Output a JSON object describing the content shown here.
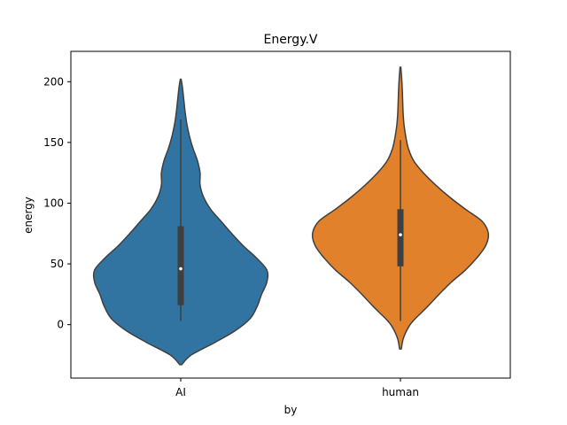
{
  "chart_data": {
    "type": "violin",
    "title": "Energy.V",
    "xlabel": "by",
    "ylabel": "energy",
    "categories": [
      "AI",
      "human"
    ],
    "ylim": [
      -44,
      225
    ],
    "yticks": [
      0,
      50,
      100,
      150,
      200
    ],
    "grid": false,
    "legend": "none",
    "series": [
      {
        "category": "AI",
        "color": "#3274a1",
        "box": {
          "whisker_low": 3,
          "q1": 16,
          "median": 46,
          "q3": 81,
          "whisker_high": 169
        },
        "density": {
          "y": [
            -33,
            -25,
            -15,
            -5,
            5,
            15,
            25,
            35,
            45,
            55,
            65,
            75,
            85,
            95,
            105,
            115,
            125,
            135,
            145,
            155,
            165,
            175,
            185,
            195,
            202
          ],
          "w": [
            0.01,
            0.12,
            0.38,
            0.62,
            0.79,
            0.87,
            0.92,
            0.98,
            0.98,
            0.86,
            0.71,
            0.58,
            0.46,
            0.34,
            0.26,
            0.22,
            0.22,
            0.19,
            0.14,
            0.1,
            0.07,
            0.05,
            0.035,
            0.02,
            0.005
          ]
        }
      },
      {
        "category": "human",
        "color": "#e1812c",
        "box": {
          "whisker_low": 3,
          "q1": 48,
          "median": 74,
          "q3": 95,
          "whisker_high": 152
        },
        "density": {
          "y": [
            -20,
            -12,
            -5,
            0,
            5,
            15,
            25,
            35,
            45,
            55,
            65,
            75,
            85,
            95,
            105,
            115,
            125,
            135,
            145,
            155,
            165,
            175,
            185,
            195,
            205,
            212
          ],
          "w": [
            0.01,
            0.03,
            0.07,
            0.11,
            0.17,
            0.31,
            0.44,
            0.58,
            0.74,
            0.87,
            0.97,
            1.0,
            0.93,
            0.74,
            0.56,
            0.4,
            0.26,
            0.15,
            0.09,
            0.06,
            0.04,
            0.03,
            0.025,
            0.02,
            0.012,
            0.004
          ]
        }
      }
    ]
  }
}
